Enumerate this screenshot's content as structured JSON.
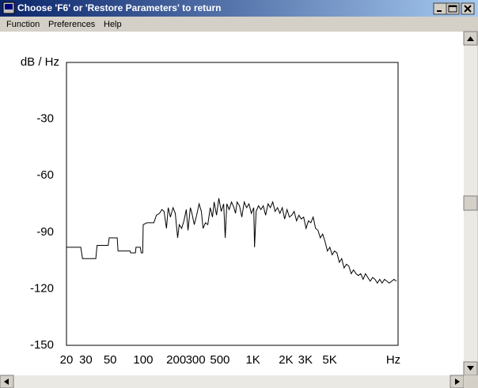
{
  "window": {
    "title": "Choose 'F6' or 'Restore Parameters' to return"
  },
  "menu": [
    "Function",
    "Preferences",
    "Help"
  ],
  "chart_data": {
    "type": "line",
    "ylabel": "dB / Hz",
    "xlabel": "Hz",
    "color": "#000000",
    "xscale": "log",
    "grid": false,
    "xlim": [
      20,
      21000
    ],
    "ylim": [
      -150,
      0
    ],
    "xticks": [
      20,
      30,
      50,
      100,
      200,
      300,
      500,
      {
        "value": 1000,
        "label": "1K"
      },
      {
        "value": 2000,
        "label": "2K"
      },
      {
        "value": 3000,
        "label": "3K"
      },
      {
        "value": 5000,
        "label": "5K"
      }
    ],
    "yticks": [
      -150,
      -120,
      -90,
      -60,
      -30
    ],
    "x": [
      20,
      20,
      20,
      27,
      28,
      37,
      38,
      48,
      49,
      58,
      59,
      76,
      77,
      85,
      86,
      94,
      96,
      99,
      100,
      108,
      125,
      132,
      141,
      148,
      155,
      163,
      169,
      177,
      187,
      196,
      206,
      213,
      224,
      235,
      247,
      256,
      269,
      278,
      292,
      307,
      323,
      339,
      351,
      369,
      388,
      408,
      428,
      443,
      466,
      489,
      514,
      541,
      559,
      578,
      607,
      638,
      671,
      694,
      717,
      754,
      792,
      833,
      875,
      920,
      967,
      1017,
      1034,
      1069,
      1123,
      1181,
      1241,
      1305,
      1372,
      1441,
      1515,
      1593,
      1674,
      1760,
      1850,
      1944,
      2044,
      2148,
      2258,
      2374,
      2495,
      2623,
      2757,
      2898,
      3047,
      3202,
      3366,
      3538,
      3719,
      3909,
      4109,
      4319,
      4539,
      4772,
      5016,
      5272,
      5542,
      5825,
      6124,
      6437,
      6766,
      7112,
      7476,
      7858,
      8260,
      8682,
      9127,
      9592,
      10083,
      10600,
      11140,
      11710,
      12310,
      12940,
      13600,
      14300,
      15030,
      15800,
      16610,
      17460,
      18350,
      19290,
      20280
    ],
    "values": [
      -137,
      -111,
      -98,
      -98,
      -104,
      -104,
      -97,
      -97,
      -93,
      -93,
      -100,
      -100,
      -101,
      -101,
      -98,
      -98,
      -101,
      -101,
      -86,
      -85,
      -85,
      -81,
      -80,
      -78,
      -79,
      -88,
      -77,
      -82,
      -77,
      -80,
      -93,
      -86,
      -88,
      -84,
      -78,
      -89,
      -77,
      -80,
      -86,
      -81,
      -75,
      -79,
      -88,
      -85,
      -86,
      -77,
      -82,
      -74,
      -81,
      -72,
      -79,
      -75,
      -93,
      -75,
      -78,
      -74,
      -77,
      -80,
      -74,
      -76,
      -82,
      -74,
      -77,
      -75,
      -80,
      -77,
      -98,
      -79,
      -76,
      -78,
      -76,
      -81,
      -75,
      -77,
      -74,
      -79,
      -77,
      -80,
      -77,
      -83,
      -78,
      -82,
      -81,
      -79,
      -84,
      -81,
      -83,
      -82,
      -88,
      -84,
      -85,
      -82,
      -88,
      -89,
      -93,
      -91,
      -95,
      -100,
      -98,
      -102,
      -100,
      -101,
      -106,
      -104,
      -109,
      -107,
      -108,
      -112,
      -110,
      -112,
      -113,
      -112,
      -115,
      -112,
      -114,
      -116,
      -114,
      -115,
      -117,
      -115,
      -117,
      -115,
      -116,
      -117,
      -116,
      -115,
      -116
    ]
  }
}
